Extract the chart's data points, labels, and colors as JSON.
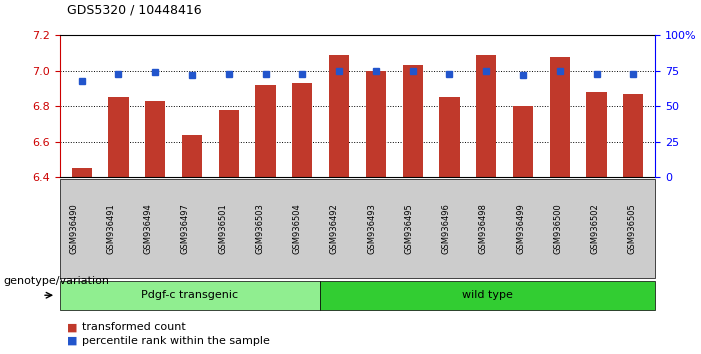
{
  "title": "GDS5320 / 10448416",
  "categories": [
    "GSM936490",
    "GSM936491",
    "GSM936494",
    "GSM936497",
    "GSM936501",
    "GSM936503",
    "GSM936504",
    "GSM936492",
    "GSM936493",
    "GSM936495",
    "GSM936496",
    "GSM936498",
    "GSM936499",
    "GSM936500",
    "GSM936502",
    "GSM936505"
  ],
  "bar_values": [
    6.45,
    6.85,
    6.83,
    6.64,
    6.78,
    6.92,
    6.93,
    7.09,
    7.0,
    7.03,
    6.85,
    7.09,
    6.8,
    7.08,
    6.88,
    6.87
  ],
  "percentile_values": [
    68,
    73,
    74,
    72,
    73,
    73,
    73,
    75,
    75,
    75,
    73,
    75,
    72,
    75,
    73,
    73
  ],
  "bar_color": "#c0392b",
  "dot_color": "#2255cc",
  "ylim_left": [
    6.4,
    7.2
  ],
  "ylim_right": [
    0,
    100
  ],
  "right_ticks": [
    0,
    25,
    50,
    75,
    100
  ],
  "right_tick_labels": [
    "0",
    "25",
    "50",
    "75",
    "100%"
  ],
  "left_ticks": [
    6.4,
    6.6,
    6.8,
    7.0,
    7.2
  ],
  "grid_lines": [
    6.6,
    6.8,
    7.0
  ],
  "groups": [
    {
      "label": "Pdgf-c transgenic",
      "start": 0,
      "end": 7,
      "color": "#90ee90"
    },
    {
      "label": "wild type",
      "start": 7,
      "end": 16,
      "color": "#32cd32"
    }
  ],
  "group_label": "genotype/variation",
  "legend_items": [
    {
      "label": "transformed count",
      "color": "#c0392b"
    },
    {
      "label": "percentile rank within the sample",
      "color": "#2255cc"
    }
  ],
  "bar_width": 0.55,
  "title_fontsize": 9,
  "tick_fontsize": 8,
  "label_fontsize": 6
}
